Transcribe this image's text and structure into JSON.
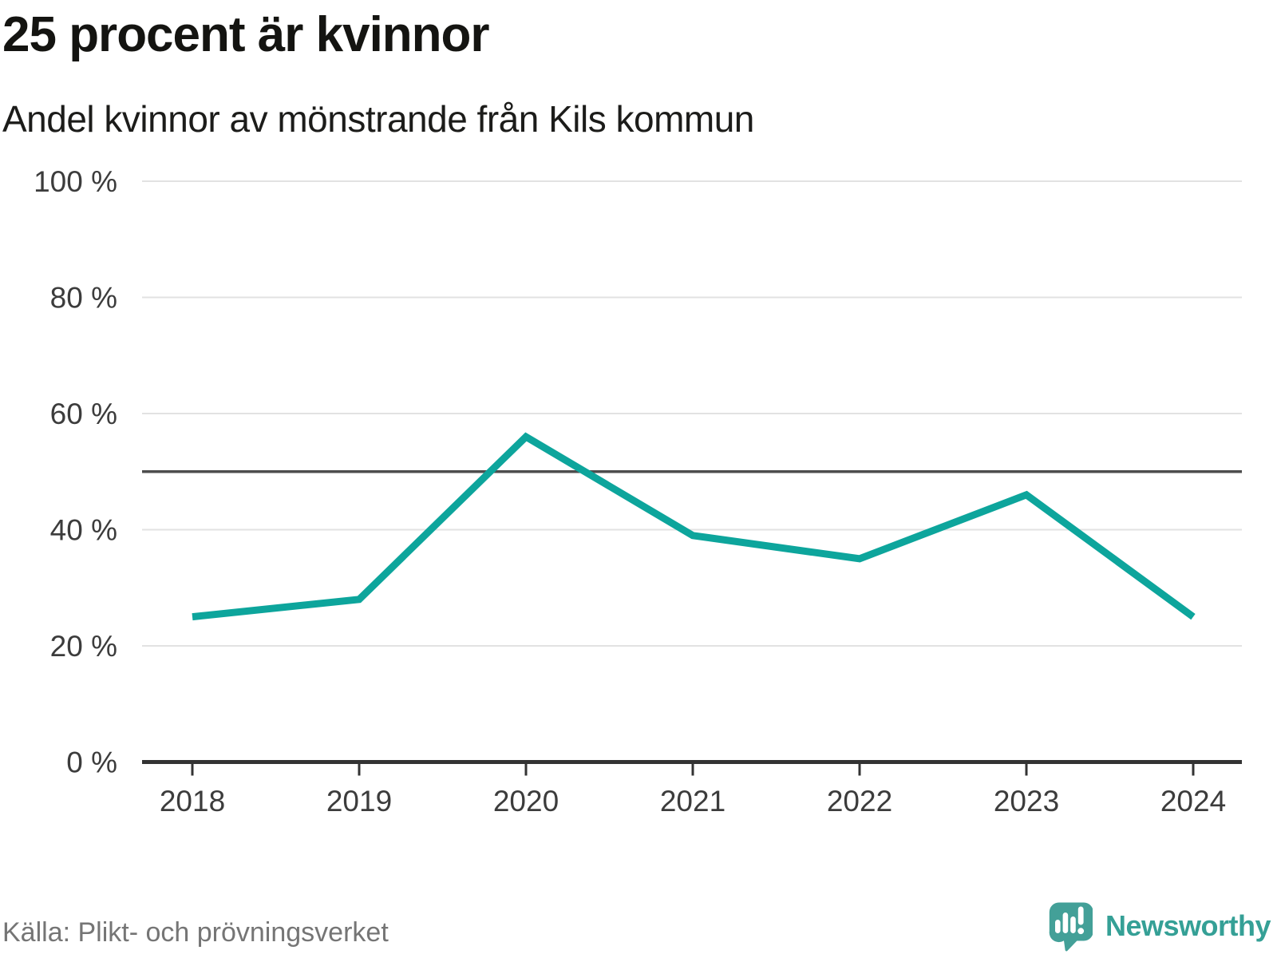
{
  "header": {
    "title": "25 procent är kvinnor",
    "subtitle": "Andel kvinnor av mönstrande från Kils kommun"
  },
  "chart_data": {
    "type": "line",
    "title": "25 procent är kvinnor",
    "subtitle": "Andel kvinnor av mönstrande från Kils kommun",
    "x": [
      "2018",
      "2019",
      "2020",
      "2021",
      "2022",
      "2023",
      "2024"
    ],
    "series": [
      {
        "name": "Andel kvinnor",
        "values": [
          25,
          28,
          56,
          39,
          35,
          46,
          25
        ]
      }
    ],
    "unit": "%",
    "ylim": [
      0,
      100
    ],
    "y_ticks": [
      0,
      20,
      40,
      60,
      80,
      100
    ],
    "y_tick_labels": [
      "0 %",
      "20 %",
      "40 %",
      "60 %",
      "80 %",
      "100 %"
    ],
    "reference_line_y": 50,
    "grid": "horizontal",
    "legend": "none"
  },
  "footer": {
    "source": "Källa: Plikt- och prövningsverket",
    "brand": "Newsworthy"
  },
  "colors": {
    "line": "#0da59c",
    "grid": "#e2e2e2",
    "reference_line": "#4d4d4d",
    "axis": "#333333",
    "tick_label": "#3c3c3c",
    "title_text": "#141411",
    "source_text": "#757575",
    "brand_text": "#35a096",
    "logo_bubble": "#43a098",
    "logo_glyphs": "#ffffff"
  }
}
